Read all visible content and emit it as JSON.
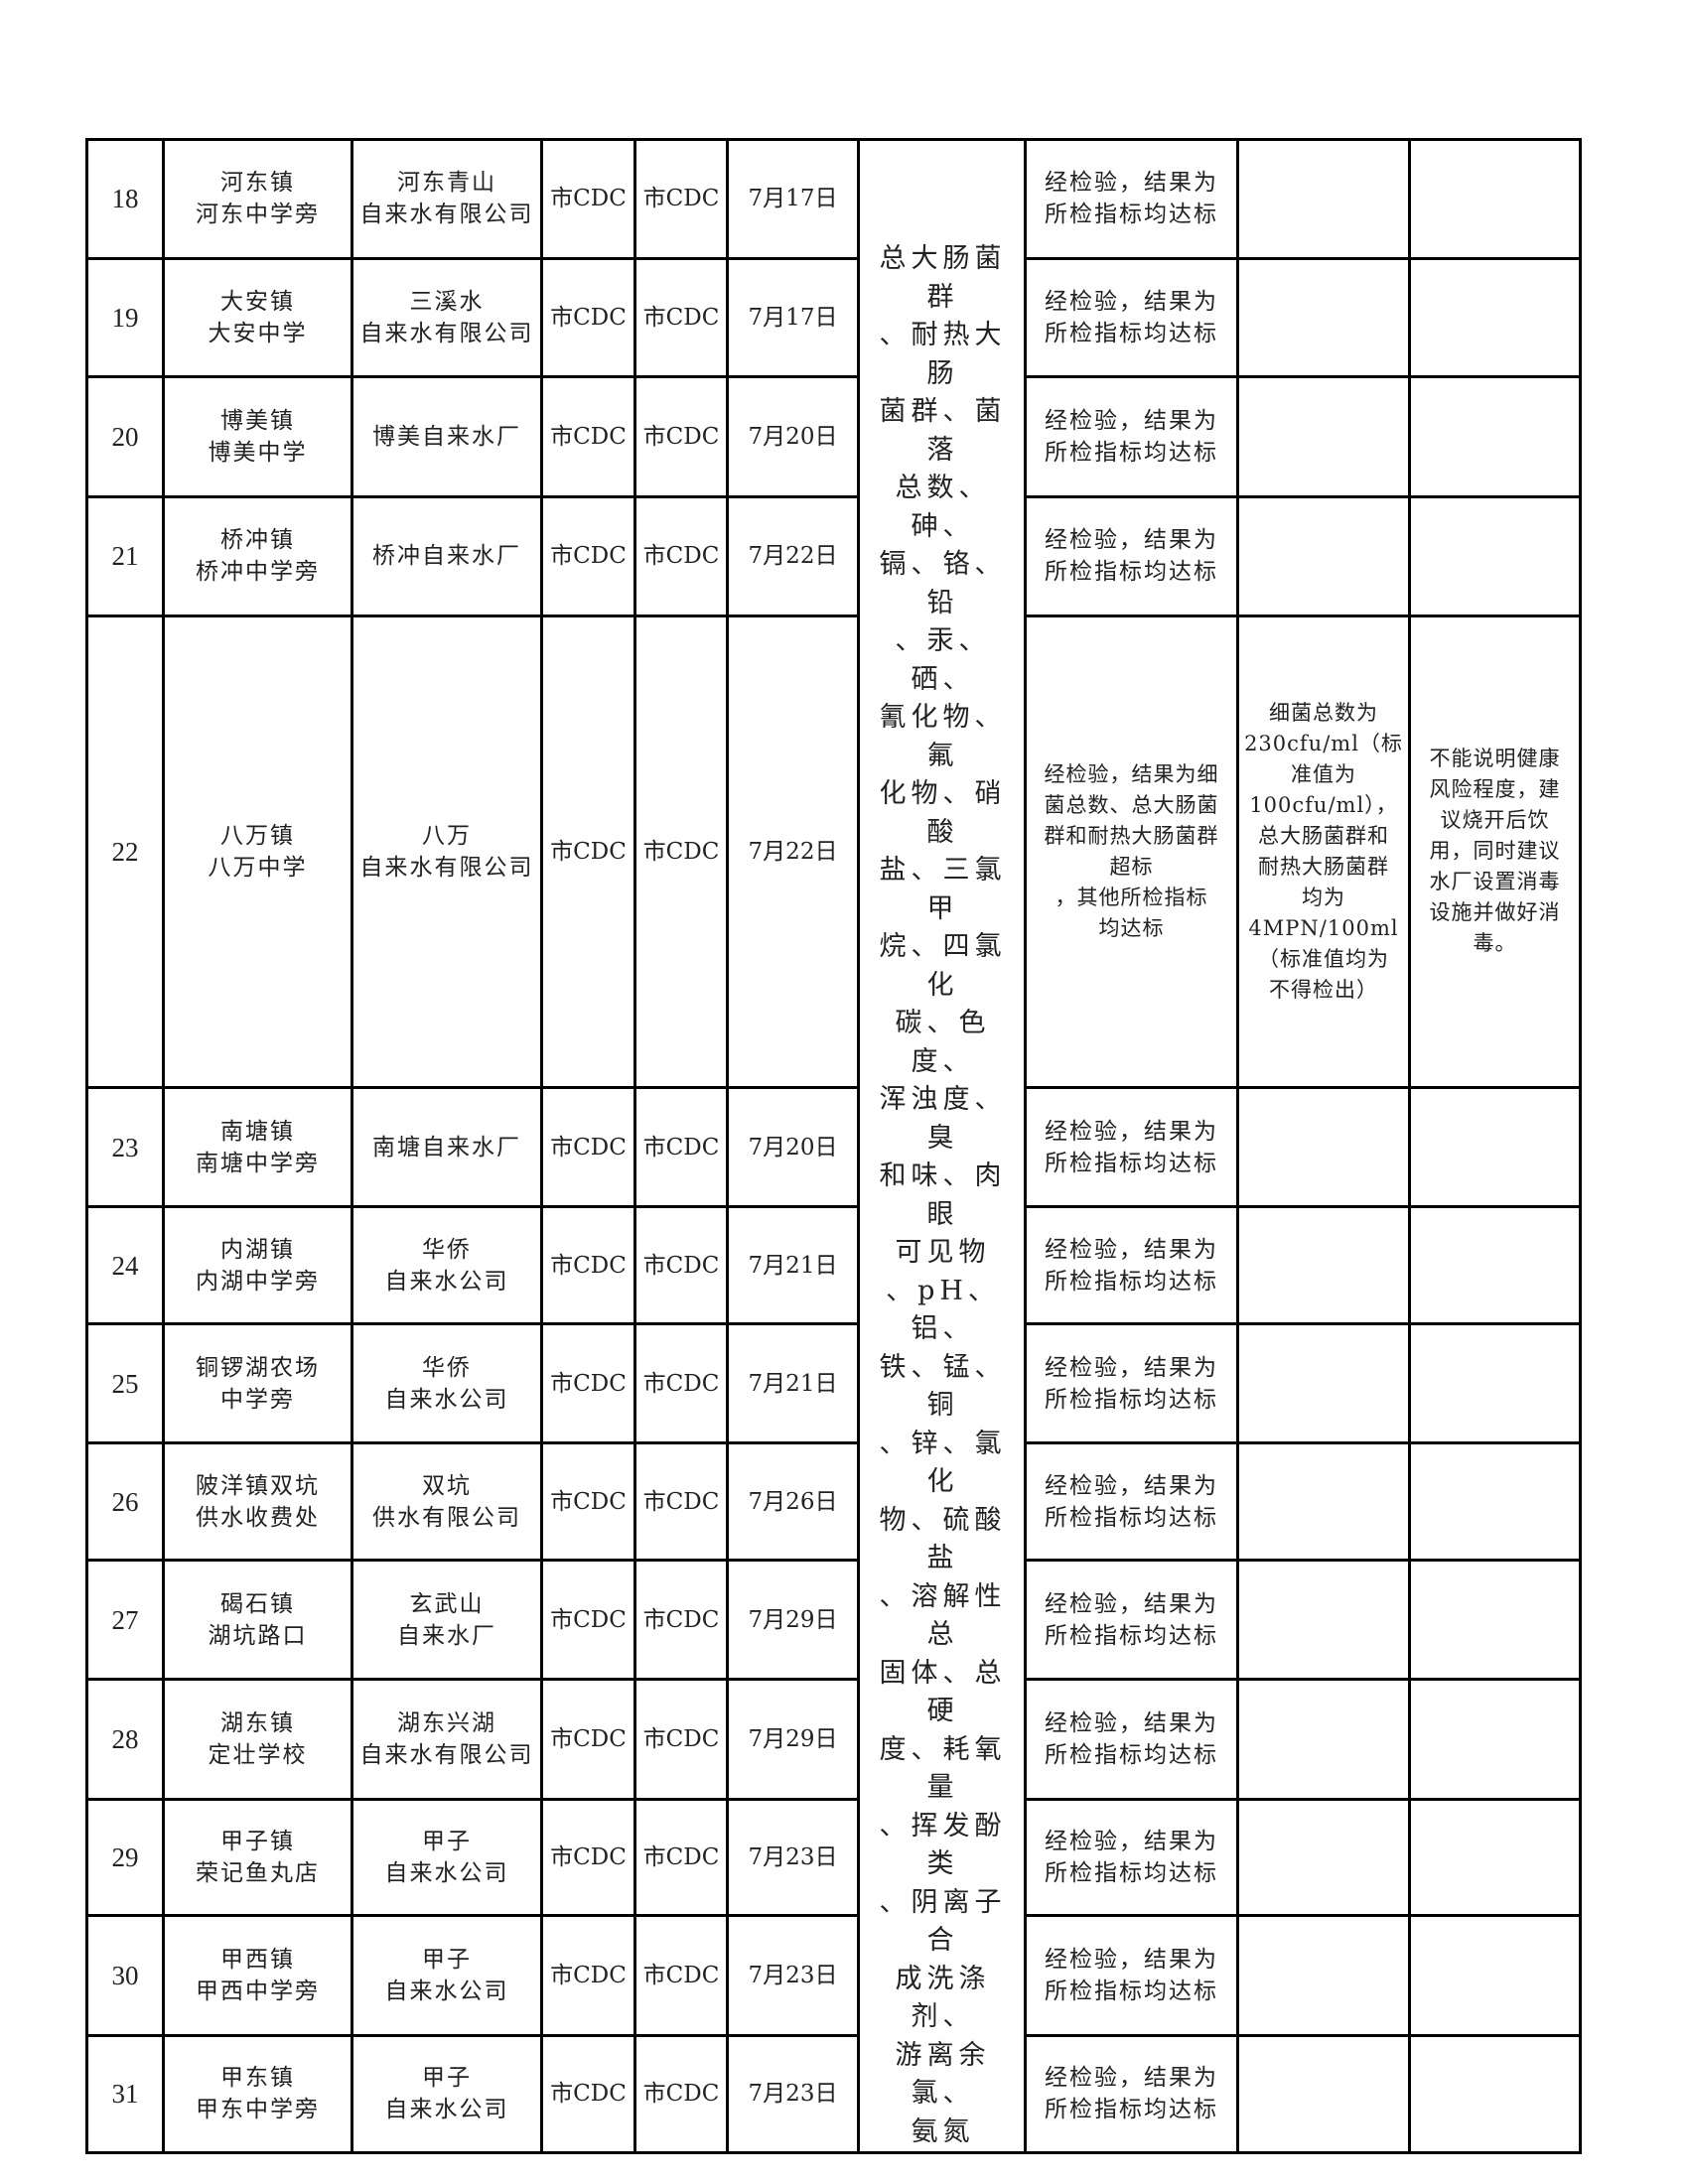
{
  "tested_items": "总大肠菌群\n、耐热大肠\n菌群、菌落\n总数、砷、\n镉、铬、铅\n、汞、硒、\n氰化物、氟\n化物、硝酸\n盐、三氯甲\n烷、四氯化\n碳、色度、\n浑浊度、臭\n和味、肉眼\n可见物\n、pH、铝、\n铁、锰、铜\n、锌、氯化\n物、硫酸盐\n、溶解性总\n固体、总硬\n度、耗氧量\n、挥发酚类\n、阴离子合\n成洗涤剂、\n游离余氯、\n氨氮",
  "rows": [
    {
      "no": "18",
      "site": [
        "河东镇",
        "河东中学旁"
      ],
      "supplier": [
        "河东青山",
        "自来水有限公司"
      ],
      "sampler": "市CDC",
      "tester": "市CDC",
      "date": "7月17日",
      "result": [
        "经检验，结果为",
        "所检指标均达标"
      ],
      "values": "",
      "advice": ""
    },
    {
      "no": "19",
      "site": [
        "大安镇",
        "大安中学"
      ],
      "supplier": [
        "三溪水",
        "自来水有限公司"
      ],
      "sampler": "市CDC",
      "tester": "市CDC",
      "date": "7月17日",
      "result": [
        "经检验，结果为",
        "所检指标均达标"
      ],
      "values": "",
      "advice": ""
    },
    {
      "no": "20",
      "site": [
        "博美镇",
        "博美中学"
      ],
      "supplier": [
        "博美自来水厂"
      ],
      "sampler": "市CDC",
      "tester": "市CDC",
      "date": "7月20日",
      "result": [
        "经检验，结果为",
        "所检指标均达标"
      ],
      "values": "",
      "advice": ""
    },
    {
      "no": "21",
      "site": [
        "桥冲镇",
        "桥冲中学旁"
      ],
      "supplier": [
        "桥冲自来水厂"
      ],
      "sampler": "市CDC",
      "tester": "市CDC",
      "date": "7月22日",
      "result": [
        "经检验，结果为",
        "所检指标均达标"
      ],
      "values": "",
      "advice": ""
    },
    {
      "no": "22",
      "site": [
        "八万镇",
        "八万中学"
      ],
      "supplier": [
        "八万",
        "自来水有限公司"
      ],
      "sampler": "市CDC",
      "tester": "市CDC",
      "date": "7月22日",
      "result": [
        "经检验，结果为细",
        "菌总数、总大肠菌",
        "群和耐热大肠菌群",
        "超标",
        "，其他所检指标",
        "均达标"
      ],
      "values": [
        "细菌总数为",
        "230cfu/ml（标",
        "准值为",
        "100cfu/ml），",
        "总大肠菌群和",
        "耐热大肠菌群",
        "均为",
        "4MPN/100ml",
        "（标准值均为",
        "不得检出）"
      ],
      "advice": [
        "不能说明健康",
        "风险程度，建",
        "议烧开后饮",
        "用，同时建议",
        "水厂设置消毒",
        "设施并做好消",
        "毒。"
      ]
    },
    {
      "no": "23",
      "site": [
        "南塘镇",
        "南塘中学旁"
      ],
      "supplier": [
        "南塘自来水厂"
      ],
      "sampler": "市CDC",
      "tester": "市CDC",
      "date": "7月20日",
      "result": [
        "经检验，结果为",
        "所检指标均达标"
      ],
      "values": "",
      "advice": ""
    },
    {
      "no": "24",
      "site": [
        "内湖镇",
        "内湖中学旁"
      ],
      "supplier": [
        "华侨",
        "自来水公司"
      ],
      "sampler": "市CDC",
      "tester": "市CDC",
      "date": "7月21日",
      "result": [
        "经检验，结果为",
        "所检指标均达标"
      ],
      "values": "",
      "advice": ""
    },
    {
      "no": "25",
      "site": [
        "铜锣湖农场",
        "中学旁"
      ],
      "supplier": [
        "华侨",
        "自来水公司"
      ],
      "sampler": "市CDC",
      "tester": "市CDC",
      "date": "7月21日",
      "result": [
        "经检验，结果为",
        "所检指标均达标"
      ],
      "values": "",
      "advice": ""
    },
    {
      "no": "26",
      "site": [
        "陂洋镇双坑",
        "供水收费处"
      ],
      "supplier": [
        "双坑",
        "供水有限公司"
      ],
      "sampler": "市CDC",
      "tester": "市CDC",
      "date": "7月26日",
      "result": [
        "经检验，结果为",
        "所检指标均达标"
      ],
      "values": "",
      "advice": ""
    },
    {
      "no": "27",
      "site": [
        "碣石镇",
        "湖坑路口"
      ],
      "supplier": [
        "玄武山",
        "自来水厂"
      ],
      "sampler": "市CDC",
      "tester": "市CDC",
      "date": "7月29日",
      "result": [
        "经检验，结果为",
        "所检指标均达标"
      ],
      "values": "",
      "advice": ""
    },
    {
      "no": "28",
      "site": [
        "湖东镇",
        "定壮学校"
      ],
      "supplier": [
        "湖东兴湖",
        "自来水有限公司"
      ],
      "sampler": "市CDC",
      "tester": "市CDC",
      "date": "7月29日",
      "result": [
        "经检验，结果为",
        "所检指标均达标"
      ],
      "values": "",
      "advice": ""
    },
    {
      "no": "29",
      "site": [
        "甲子镇",
        "荣记鱼丸店"
      ],
      "supplier": [
        "甲子",
        "自来水公司"
      ],
      "sampler": "市CDC",
      "tester": "市CDC",
      "date": "7月23日",
      "result": [
        "经检验，结果为",
        "所检指标均达标"
      ],
      "values": "",
      "advice": ""
    },
    {
      "no": "30",
      "site": [
        "甲西镇",
        "甲西中学旁"
      ],
      "supplier": [
        "甲子",
        "自来水公司"
      ],
      "sampler": "市CDC",
      "tester": "市CDC",
      "date": "7月23日",
      "result": [
        "经检验，结果为",
        "所检指标均达标"
      ],
      "values": "",
      "advice": ""
    },
    {
      "no": "31",
      "site": [
        "甲东镇",
        "甲东中学旁"
      ],
      "supplier": [
        "甲子",
        "自来水公司"
      ],
      "sampler": "市CDC",
      "tester": "市CDC",
      "date": "7月23日",
      "result": [
        "经检验，结果为",
        "所检指标均达标"
      ],
      "values": "",
      "advice": ""
    }
  ]
}
